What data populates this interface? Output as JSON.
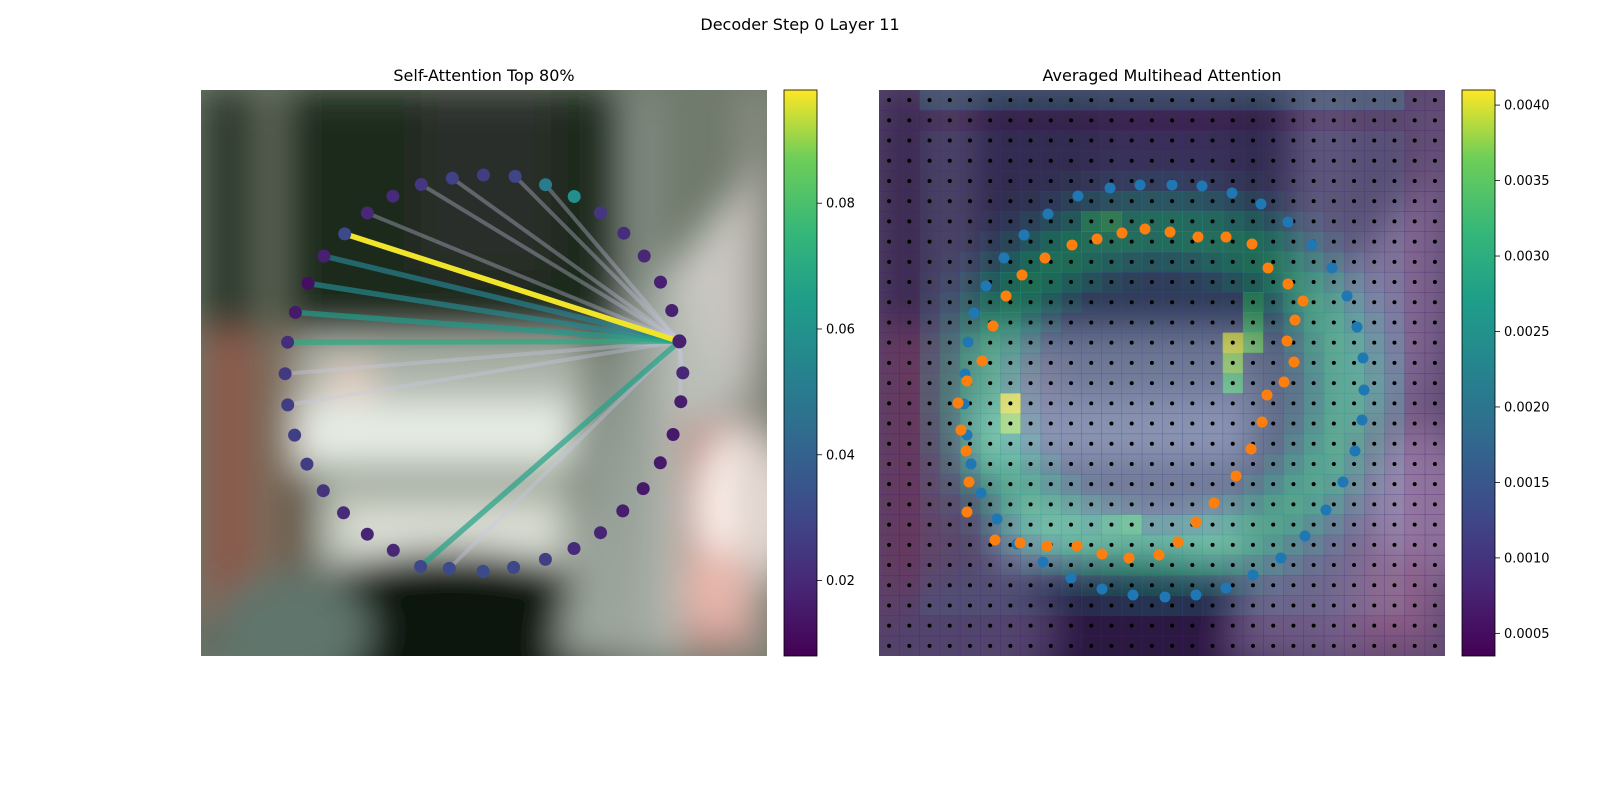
{
  "figure": {
    "title": "Decoder Step 0 Layer 11"
  },
  "chart_data": [
    {
      "type": "network",
      "title": "Self-Attention Top 80%",
      "background": "blurred camera image",
      "colorbar": {
        "colormap": "viridis",
        "ticks": [
          0.02,
          0.04,
          0.06,
          0.08
        ],
        "range": [
          0.008,
          0.098
        ]
      },
      "query_index": 13,
      "nodes": [
        {
          "x": 420.6,
          "y": 566.5,
          "v": 0.03
        },
        {
          "x": 449.3,
          "y": 568.4,
          "v": 0.031
        },
        {
          "x": 483.0,
          "y": 571.4,
          "v": 0.031
        },
        {
          "x": 513.6,
          "y": 567.4,
          "v": 0.03
        },
        {
          "x": 545.4,
          "y": 559.4,
          "v": 0.027
        },
        {
          "x": 574.0,
          "y": 548.5,
          "v": 0.02
        },
        {
          "x": 600.5,
          "y": 532.7,
          "v": 0.018
        },
        {
          "x": 622.8,
          "y": 510.9,
          "v": 0.016
        },
        {
          "x": 643.2,
          "y": 488.6,
          "v": 0.015
        },
        {
          "x": 660.3,
          "y": 462.8,
          "v": 0.015
        },
        {
          "x": 673.1,
          "y": 434.5,
          "v": 0.015
        },
        {
          "x": 680.8,
          "y": 401.7,
          "v": 0.016
        },
        {
          "x": 682.8,
          "y": 372.9,
          "v": 0.019
        },
        {
          "x": 679.4,
          "y": 341.4,
          "v": 0.017
        },
        {
          "x": 671.8,
          "y": 310.5,
          "v": 0.017
        },
        {
          "x": 660.5,
          "y": 282.1,
          "v": 0.017
        },
        {
          "x": 644.2,
          "y": 256.0,
          "v": 0.019
        },
        {
          "x": 623.8,
          "y": 233.2,
          "v": 0.021
        },
        {
          "x": 600.5,
          "y": 212.9,
          "v": 0.024
        },
        {
          "x": 574.2,
          "y": 196.5,
          "v": 0.058
        },
        {
          "x": 545.5,
          "y": 184.7,
          "v": 0.05
        },
        {
          "x": 515.1,
          "y": 176.4,
          "v": 0.029
        },
        {
          "x": 483.4,
          "y": 175.0,
          "v": 0.026
        },
        {
          "x": 452.3,
          "y": 178.2,
          "v": 0.028
        },
        {
          "x": 421.3,
          "y": 184.5,
          "v": 0.024
        },
        {
          "x": 392.9,
          "y": 196.2,
          "v": 0.02
        },
        {
          "x": 367.3,
          "y": 213.0,
          "v": 0.019
        },
        {
          "x": 344.7,
          "y": 233.9,
          "v": 0.031
        },
        {
          "x": 324.0,
          "y": 256.1,
          "v": 0.017
        },
        {
          "x": 308.1,
          "y": 283.4,
          "v": 0.012
        },
        {
          "x": 295.4,
          "y": 312.4,
          "v": 0.015
        },
        {
          "x": 287.6,
          "y": 342.2,
          "v": 0.021
        },
        {
          "x": 285.1,
          "y": 373.7,
          "v": 0.025
        },
        {
          "x": 287.7,
          "y": 404.9,
          "v": 0.026
        },
        {
          "x": 294.6,
          "y": 435.1,
          "v": 0.027
        },
        {
          "x": 306.9,
          "y": 464.1,
          "v": 0.026
        },
        {
          "x": 323.3,
          "y": 490.7,
          "v": 0.023
        },
        {
          "x": 343.5,
          "y": 512.8,
          "v": 0.02
        },
        {
          "x": 367.3,
          "y": 534.2,
          "v": 0.018
        },
        {
          "x": 393.3,
          "y": 550.3,
          "v": 0.019
        }
      ],
      "edges": [
        {
          "target": 27,
          "v": 0.097
        },
        {
          "target": 31,
          "v": 0.07
        },
        {
          "target": 0,
          "v": 0.066
        },
        {
          "target": 30,
          "v": 0.063
        },
        {
          "target": 29,
          "v": 0.055
        },
        {
          "target": 28,
          "v": 0.052
        },
        {
          "target": 23,
          "v": 0.044
        },
        {
          "target": 20,
          "v": 0.04
        },
        {
          "target": 1,
          "v": 0.038
        },
        {
          "target": 26,
          "v": 0.036
        },
        {
          "target": 24,
          "v": 0.034
        },
        {
          "target": 21,
          "v": 0.032
        },
        {
          "target": 12,
          "v": 0.03
        },
        {
          "target": 32,
          "v": 0.03
        },
        {
          "target": 11,
          "v": 0.028
        },
        {
          "target": 33,
          "v": 0.026
        }
      ]
    },
    {
      "type": "heatmap",
      "title": "Averaged Multihead Attention",
      "background": "blurred camera image",
      "colorbar": {
        "colormap": "viridis",
        "ticks": [
          0.0005,
          0.001,
          0.0015,
          0.002,
          0.0025,
          0.003,
          0.0035,
          0.004
        ],
        "range": [
          0.00035,
          0.0041
        ]
      },
      "grid": {
        "rows": 28,
        "cols": 28
      },
      "blue_points": [
        {
          "x": 1110,
          "y": 188
        },
        {
          "x": 1140,
          "y": 185
        },
        {
          "x": 1172,
          "y": 185
        },
        {
          "x": 1202,
          "y": 186
        },
        {
          "x": 1232,
          "y": 193
        },
        {
          "x": 1261,
          "y": 204
        },
        {
          "x": 1288,
          "y": 222
        },
        {
          "x": 1312,
          "y": 245
        },
        {
          "x": 1332,
          "y": 268
        },
        {
          "x": 1347,
          "y": 296
        },
        {
          "x": 1357,
          "y": 327
        },
        {
          "x": 1363,
          "y": 358
        },
        {
          "x": 1364,
          "y": 390
        },
        {
          "x": 1362,
          "y": 420
        },
        {
          "x": 1355,
          "y": 451
        },
        {
          "x": 1343,
          "y": 482
        },
        {
          "x": 1326,
          "y": 510
        },
        {
          "x": 1305,
          "y": 536
        },
        {
          "x": 1281,
          "y": 558
        },
        {
          "x": 1253,
          "y": 575
        },
        {
          "x": 1226,
          "y": 588
        },
        {
          "x": 1196,
          "y": 595
        },
        {
          "x": 1165,
          "y": 597
        },
        {
          "x": 1133,
          "y": 595
        },
        {
          "x": 1102,
          "y": 589
        },
        {
          "x": 1071,
          "y": 578
        },
        {
          "x": 1043,
          "y": 562
        },
        {
          "x": 1017,
          "y": 544
        },
        {
          "x": 997,
          "y": 519
        },
        {
          "x": 981,
          "y": 493
        },
        {
          "x": 971,
          "y": 464
        },
        {
          "x": 967,
          "y": 435
        },
        {
          "x": 964,
          "y": 404
        },
        {
          "x": 965,
          "y": 374
        },
        {
          "x": 968,
          "y": 342
        },
        {
          "x": 974,
          "y": 313
        },
        {
          "x": 986,
          "y": 286
        },
        {
          "x": 1004,
          "y": 258
        },
        {
          "x": 1024,
          "y": 235
        },
        {
          "x": 1048,
          "y": 214
        },
        {
          "x": 1078,
          "y": 196
        }
      ],
      "orange_points": [
        {
          "x": 1097,
          "y": 239
        },
        {
          "x": 1122,
          "y": 233
        },
        {
          "x": 1145,
          "y": 229
        },
        {
          "x": 1170,
          "y": 232
        },
        {
          "x": 1198,
          "y": 237
        },
        {
          "x": 1226,
          "y": 237
        },
        {
          "x": 1252,
          "y": 244
        },
        {
          "x": 1268,
          "y": 268
        },
        {
          "x": 1288,
          "y": 284
        },
        {
          "x": 1303,
          "y": 301
        },
        {
          "x": 1295,
          "y": 320
        },
        {
          "x": 1287,
          "y": 341
        },
        {
          "x": 1294,
          "y": 362
        },
        {
          "x": 1284,
          "y": 382
        },
        {
          "x": 1267,
          "y": 395
        },
        {
          "x": 1262,
          "y": 422
        },
        {
          "x": 1251,
          "y": 449
        },
        {
          "x": 1236,
          "y": 476
        },
        {
          "x": 1214,
          "y": 503
        },
        {
          "x": 1196,
          "y": 522
        },
        {
          "x": 1178,
          "y": 542
        },
        {
          "x": 1159,
          "y": 555
        },
        {
          "x": 1129,
          "y": 558
        },
        {
          "x": 1102,
          "y": 554
        },
        {
          "x": 1077,
          "y": 546
        },
        {
          "x": 1047,
          "y": 546
        },
        {
          "x": 1020,
          "y": 543
        },
        {
          "x": 995,
          "y": 540
        },
        {
          "x": 967,
          "y": 512
        },
        {
          "x": 969,
          "y": 482
        },
        {
          "x": 966,
          "y": 451
        },
        {
          "x": 961,
          "y": 430
        },
        {
          "x": 958,
          "y": 403
        },
        {
          "x": 967,
          "y": 381
        },
        {
          "x": 982,
          "y": 361
        },
        {
          "x": 993,
          "y": 326
        },
        {
          "x": 1006,
          "y": 296
        },
        {
          "x": 1022,
          "y": 275
        },
        {
          "x": 1045,
          "y": 258
        },
        {
          "x": 1072,
          "y": 245
        }
      ],
      "hotspots": [
        {
          "r": 12,
          "c": 17,
          "v": 0.004
        },
        {
          "r": 13,
          "c": 17,
          "v": 0.0037
        },
        {
          "r": 12,
          "c": 18,
          "v": 0.0035
        },
        {
          "r": 15,
          "c": 6,
          "v": 0.004
        },
        {
          "r": 16,
          "c": 6,
          "v": 0.0037
        },
        {
          "r": 11,
          "c": 18,
          "v": 0.0032
        },
        {
          "r": 6,
          "c": 10,
          "v": 0.003
        },
        {
          "r": 6,
          "c": 11,
          "v": 0.0032
        },
        {
          "r": 21,
          "c": 12,
          "v": 0.0031
        },
        {
          "r": 21,
          "c": 11,
          "v": 0.0029
        },
        {
          "r": 10,
          "c": 18,
          "v": 0.003
        },
        {
          "r": 14,
          "c": 17,
          "v": 0.0032
        }
      ]
    }
  ]
}
